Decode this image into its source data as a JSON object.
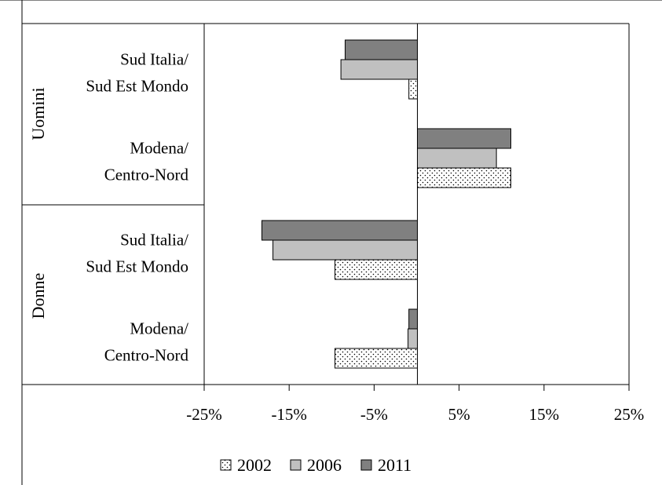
{
  "chart_data": {
    "type": "bar",
    "orientation": "horizontal",
    "groups": [
      {
        "label": "Uomini",
        "categories": [
          {
            "label_lines": [
              "Sud Italia/",
              "Sud Est Mondo"
            ],
            "values": {
              "2002": -1.0,
              "2006": -9.0,
              "2011": -8.5
            }
          },
          {
            "label_lines": [
              "Modena/",
              "Centro-Nord"
            ],
            "values": {
              "2002": 11.0,
              "2006": 9.3,
              "2011": 11.0
            }
          }
        ]
      },
      {
        "label": "Donne",
        "categories": [
          {
            "label_lines": [
              "Sud Italia/",
              "Sud Est Mondo"
            ],
            "values": {
              "2002": -9.7,
              "2006": -17.0,
              "2011": -18.3
            }
          },
          {
            "label_lines": [
              "Modena/",
              "Centro-Nord"
            ],
            "values": {
              "2002": -9.7,
              "2006": -1.1,
              "2011": -1.0
            }
          }
        ]
      }
    ],
    "series": [
      {
        "name": "2002",
        "pattern": "dots",
        "color": "#ffffff"
      },
      {
        "name": "2006",
        "pattern": "solid",
        "color": "#c0c0c0"
      },
      {
        "name": "2011",
        "pattern": "solid",
        "color": "#808080"
      }
    ],
    "xlim": [
      -25,
      25
    ],
    "x_ticks": [
      -25,
      -15,
      -5,
      5,
      15,
      25
    ],
    "x_tick_labels": [
      "-25%",
      "-15%",
      "-5%",
      "5%",
      "15%",
      "25%"
    ],
    "title": "",
    "xlabel": "",
    "ylabel": "",
    "grid": false,
    "legend_position": "bottom"
  }
}
